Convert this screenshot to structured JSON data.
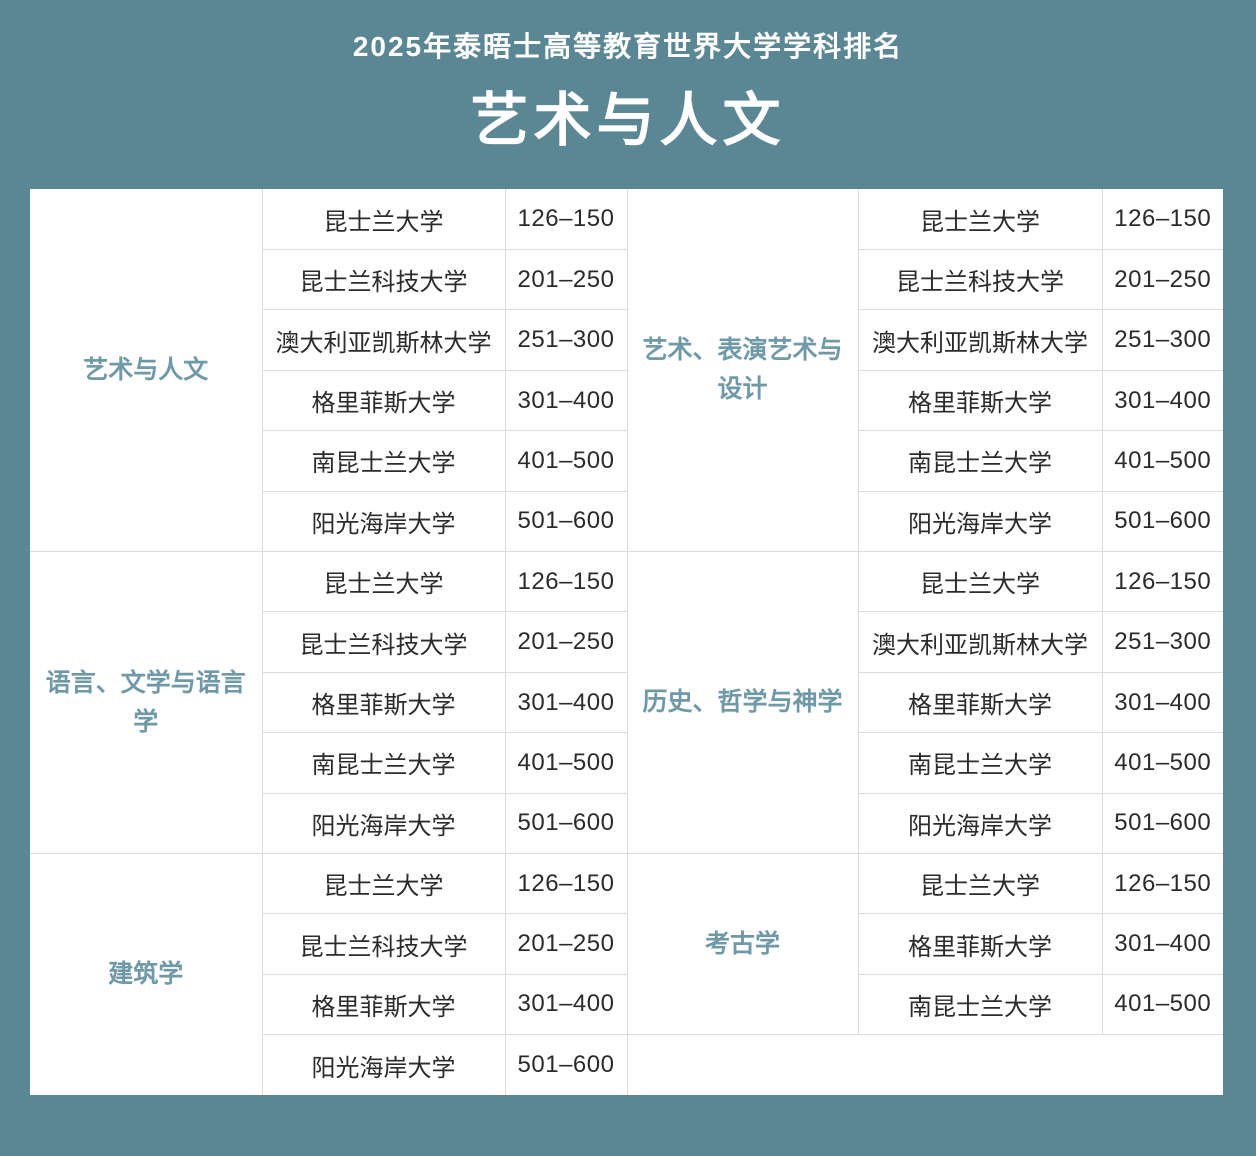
{
  "colors": {
    "page_background": "#5b8794",
    "header_text": "#ffffff",
    "category_text": "#6f99a7",
    "cell_text": "#2b2b2b",
    "grid_border": "#d9dbde",
    "table_background": "#ffffff"
  },
  "chart_data": {
    "type": "table",
    "subtitle": "2025年泰晤士高等教育世界大学学科排名",
    "title": "艺术与人文",
    "groups": [
      {
        "left": {
          "category": "艺术与人文",
          "rows": [
            {
              "university": "昆士兰大学",
              "rank": "126–150"
            },
            {
              "university": "昆士兰科技大学",
              "rank": "201–250"
            },
            {
              "university": "澳大利亚凯斯林大学",
              "rank": "251–300"
            },
            {
              "university": "格里菲斯大学",
              "rank": "301–400"
            },
            {
              "university": "南昆士兰大学",
              "rank": "401–500"
            },
            {
              "university": "阳光海岸大学",
              "rank": "501–600"
            }
          ]
        },
        "right": {
          "category": "艺术、表演艺术与设计",
          "rows": [
            {
              "university": "昆士兰大学",
              "rank": "126–150"
            },
            {
              "university": "昆士兰科技大学",
              "rank": "201–250"
            },
            {
              "university": "澳大利亚凯斯林大学",
              "rank": "251–300"
            },
            {
              "university": "格里菲斯大学",
              "rank": "301–400"
            },
            {
              "university": "南昆士兰大学",
              "rank": "401–500"
            },
            {
              "university": "阳光海岸大学",
              "rank": "501–600"
            }
          ]
        }
      },
      {
        "left": {
          "category": "语言、文学与语言学",
          "rows": [
            {
              "university": "昆士兰大学",
              "rank": "126–150"
            },
            {
              "university": "昆士兰科技大学",
              "rank": "201–250"
            },
            {
              "university": "格里菲斯大学",
              "rank": "301–400"
            },
            {
              "university": "南昆士兰大学",
              "rank": "401–500"
            },
            {
              "university": "阳光海岸大学",
              "rank": "501–600"
            }
          ]
        },
        "right": {
          "category": "历史、哲学与神学",
          "rows": [
            {
              "university": "昆士兰大学",
              "rank": "126–150"
            },
            {
              "university": "澳大利亚凯斯林大学",
              "rank": "251–300"
            },
            {
              "university": "格里菲斯大学",
              "rank": "301–400"
            },
            {
              "university": "南昆士兰大学",
              "rank": "401–500"
            },
            {
              "university": "阳光海岸大学",
              "rank": "501–600"
            }
          ]
        }
      },
      {
        "left": {
          "category": "建筑学",
          "rows": [
            {
              "university": "昆士兰大学",
              "rank": "126–150"
            },
            {
              "university": "昆士兰科技大学",
              "rank": "201–250"
            },
            {
              "university": "格里菲斯大学",
              "rank": "301–400"
            },
            {
              "university": "阳光海岸大学",
              "rank": "501–600"
            }
          ]
        },
        "right": {
          "category": "考古学",
          "rows": [
            {
              "university": "昆士兰大学",
              "rank": "126–150"
            },
            {
              "university": "格里菲斯大学",
              "rank": "301–400"
            },
            {
              "university": "南昆士兰大学",
              "rank": "401–500"
            }
          ]
        }
      }
    ]
  }
}
